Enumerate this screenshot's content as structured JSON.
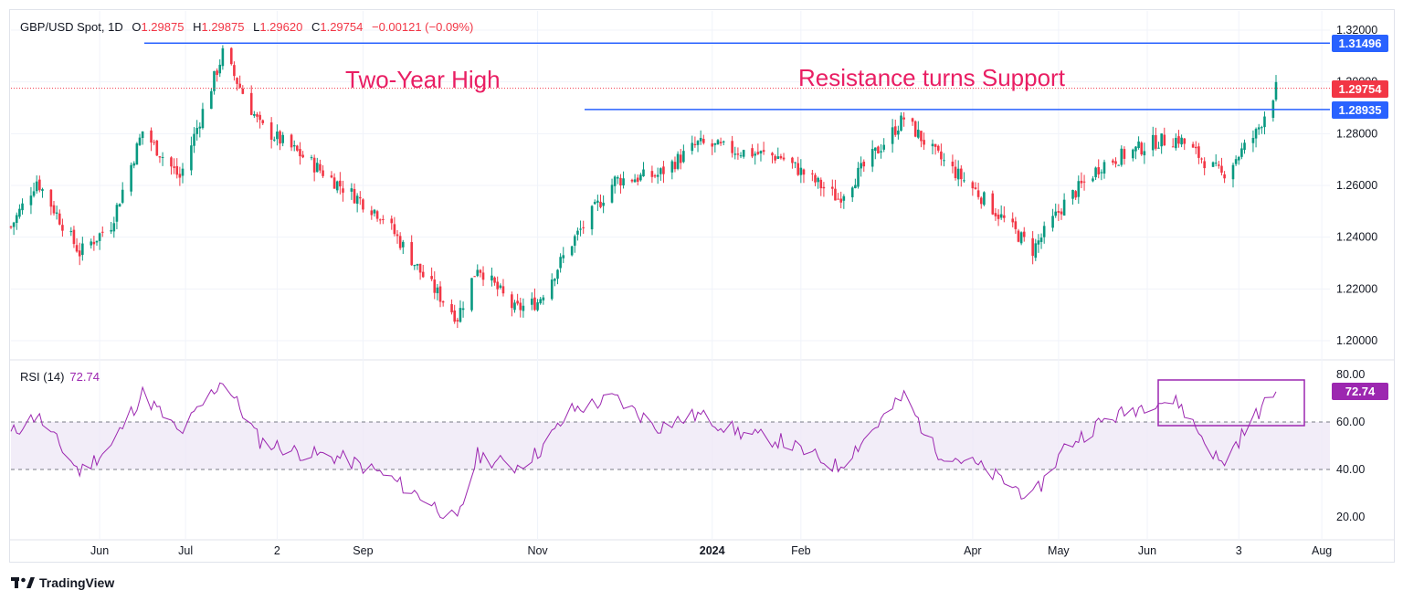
{
  "header": {
    "symbol": "GBP/USD Spot, 1D",
    "open_label": "O",
    "open": "1.29875",
    "high_label": "H",
    "high": "1.29875",
    "low_label": "L",
    "low": "1.29620",
    "close_label": "C",
    "close": "1.29754",
    "change": "−0.00121 (−0.09%)"
  },
  "annotations": {
    "two_year_high": "Two-Year High",
    "resistance": "Resistance turns Support"
  },
  "price_tags": {
    "top_line": "1.31496",
    "last_price": "1.29754",
    "support_line": "1.28935"
  },
  "rsi": {
    "label": "RSI (14)",
    "value": "72.74"
  },
  "brand": {
    "name": "TradingView"
  },
  "colors": {
    "up": "#089981",
    "down": "#f23645",
    "line": "#2962ff",
    "rsi": "#9c27b0",
    "annot": "#e91e63",
    "band": "#ede7f6"
  },
  "chart_data": [
    {
      "type": "candlestick",
      "title": "GBP/USD Spot, 1D",
      "x_ticks": [
        "Jun",
        "Jul",
        "2",
        "Sep",
        "Nov",
        "2024",
        "Feb",
        "Apr",
        "May",
        "Jun",
        "3",
        "Aug"
      ],
      "y_ticks": [
        "1.20000",
        "1.22000",
        "1.24000",
        "1.26000",
        "1.28000",
        "1.30000",
        "1.32000"
      ],
      "ylim": [
        1.193,
        1.3275
      ],
      "horizontal_lines": [
        {
          "value": 1.31496,
          "label": "1.31496",
          "from": "Jun 2023"
        },
        {
          "value": 1.28935,
          "label": "1.28935",
          "from": "Nov 2023"
        }
      ],
      "last_price_line": 1.29754,
      "close_path": [
        {
          "date": "2023-05-01",
          "close": 1.244
        },
        {
          "date": "2023-05-10",
          "close": 1.262
        },
        {
          "date": "2023-05-25",
          "close": 1.234
        },
        {
          "date": "2023-06-05",
          "close": 1.245
        },
        {
          "date": "2023-06-16",
          "close": 1.281
        },
        {
          "date": "2023-06-29",
          "close": 1.263
        },
        {
          "date": "2023-07-14",
          "close": 1.311
        },
        {
          "date": "2023-07-27",
          "close": 1.283
        },
        {
          "date": "2023-08-10",
          "close": 1.272
        },
        {
          "date": "2023-08-24",
          "close": 1.26
        },
        {
          "date": "2023-09-08",
          "close": 1.248
        },
        {
          "date": "2023-09-22",
          "close": 1.225
        },
        {
          "date": "2023-10-04",
          "close": 1.209
        },
        {
          "date": "2023-10-11",
          "close": 1.229
        },
        {
          "date": "2023-10-24",
          "close": 1.212
        },
        {
          "date": "2023-11-01",
          "close": 1.215
        },
        {
          "date": "2023-11-13",
          "close": 1.238
        },
        {
          "date": "2023-11-28",
          "close": 1.262
        },
        {
          "date": "2023-12-13",
          "close": 1.264
        },
        {
          "date": "2023-12-27",
          "close": 1.276
        },
        {
          "date": "2024-01-12",
          "close": 1.273
        },
        {
          "date": "2024-01-25",
          "close": 1.271
        },
        {
          "date": "2024-02-14",
          "close": 1.255
        },
        {
          "date": "2024-03-08",
          "close": 1.286
        },
        {
          "date": "2024-03-19",
          "close": 1.272
        },
        {
          "date": "2024-04-02",
          "close": 1.258
        },
        {
          "date": "2024-04-22",
          "close": 1.235
        },
        {
          "date": "2024-05-03",
          "close": 1.253
        },
        {
          "date": "2024-05-16",
          "close": 1.268
        },
        {
          "date": "2024-06-04",
          "close": 1.277
        },
        {
          "date": "2024-06-12",
          "close": 1.278
        },
        {
          "date": "2024-06-27",
          "close": 1.264
        },
        {
          "date": "2024-07-09",
          "close": 1.28
        },
        {
          "date": "2024-07-16",
          "close": 1.2975
        }
      ]
    },
    {
      "type": "line",
      "title": "RSI (14)",
      "y_ticks": [
        "20.00",
        "40.00",
        "60.00",
        "80.00"
      ],
      "ylim": [
        13,
        82
      ],
      "band": [
        40,
        60
      ],
      "last_value": 72.74,
      "path": [
        {
          "date": "2023-05-01",
          "rsi": 55
        },
        {
          "date": "2023-05-10",
          "rsi": 63
        },
        {
          "date": "2023-05-25",
          "rsi": 39
        },
        {
          "date": "2023-06-05",
          "rsi": 50
        },
        {
          "date": "2023-06-16",
          "rsi": 72
        },
        {
          "date": "2023-06-29",
          "rsi": 55
        },
        {
          "date": "2023-07-14",
          "rsi": 78
        },
        {
          "date": "2023-07-27",
          "rsi": 52
        },
        {
          "date": "2023-08-10",
          "rsi": 47
        },
        {
          "date": "2023-08-24",
          "rsi": 45
        },
        {
          "date": "2023-09-08",
          "rsi": 38
        },
        {
          "date": "2023-09-22",
          "rsi": 28
        },
        {
          "date": "2023-10-04",
          "rsi": 18
        },
        {
          "date": "2023-10-11",
          "rsi": 46
        },
        {
          "date": "2023-10-24",
          "rsi": 41
        },
        {
          "date": "2023-11-01",
          "rsi": 47
        },
        {
          "date": "2023-11-13",
          "rsi": 65
        },
        {
          "date": "2023-11-28",
          "rsi": 70
        },
        {
          "date": "2023-12-13",
          "rsi": 58
        },
        {
          "date": "2023-12-27",
          "rsi": 63
        },
        {
          "date": "2024-01-12",
          "rsi": 55
        },
        {
          "date": "2024-01-25",
          "rsi": 52
        },
        {
          "date": "2024-02-14",
          "rsi": 41
        },
        {
          "date": "2024-03-08",
          "rsi": 71
        },
        {
          "date": "2024-03-19",
          "rsi": 48
        },
        {
          "date": "2024-04-02",
          "rsi": 42
        },
        {
          "date": "2024-04-22",
          "rsi": 28
        },
        {
          "date": "2024-05-03",
          "rsi": 49
        },
        {
          "date": "2024-05-16",
          "rsi": 60
        },
        {
          "date": "2024-06-04",
          "rsi": 69
        },
        {
          "date": "2024-06-12",
          "rsi": 68
        },
        {
          "date": "2024-06-27",
          "rsi": 42
        },
        {
          "date": "2024-07-09",
          "rsi": 63
        },
        {
          "date": "2024-07-16",
          "rsi": 72.74
        }
      ]
    }
  ]
}
